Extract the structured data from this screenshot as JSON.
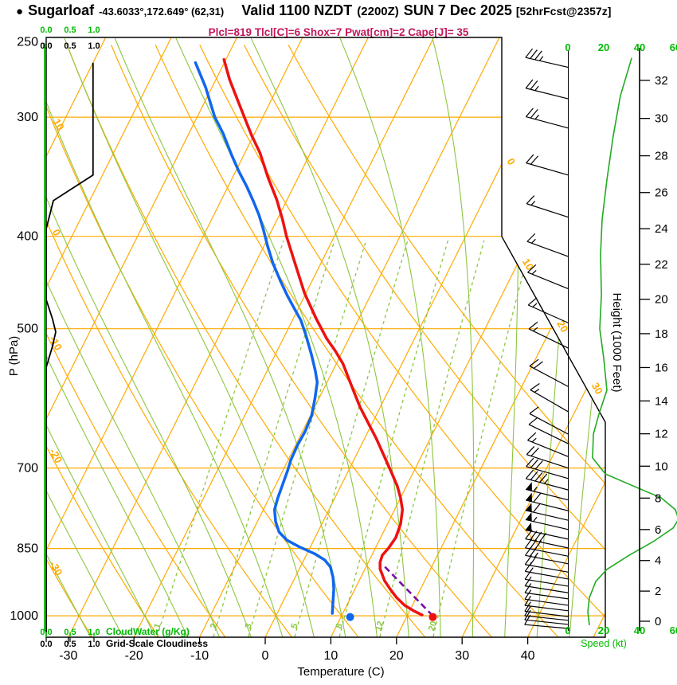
{
  "title": {
    "bullet": "●",
    "station": "Sugarloaf",
    "coords": "-43.6033°,172.649° (62,31)",
    "valid": "Valid 1100 NZDT",
    "zulu": "(2200Z)",
    "date": "SUN 7 Dec 2025",
    "fcst": "[52hrFcst@2357z]"
  },
  "subtitle": "Plcl=819 Tlcl[C]=6 Shox=7 Pwat[cm]=2 Cape[J]= 35",
  "colors": {
    "orange": "#FFAA00",
    "green_bright": "#00BB00",
    "green_soft": "#8CC63F",
    "speed_green": "#22AA22",
    "red": "#EE1111",
    "blue": "#1166EE",
    "purple": "#7A0DA6",
    "crimson": "#C2185B",
    "black": "#000000"
  },
  "axes": {
    "pressure": {
      "label": "P (hPa)",
      "ticks": [
        250,
        300,
        400,
        500,
        700,
        850,
        1000
      ]
    },
    "temperature": {
      "label": "Temperature (C)",
      "ticks": [
        -30,
        -20,
        -10,
        0,
        10,
        20,
        30,
        40
      ]
    },
    "height": {
      "label": "Height (1000 Feet)",
      "ticks": [
        0,
        2,
        4,
        6,
        8,
        10,
        12,
        14,
        16,
        18,
        20,
        22,
        24,
        26,
        28,
        30,
        32
      ]
    },
    "speed": {
      "label": "Speed (kt)",
      "ticks": [
        0,
        20,
        40,
        60
      ]
    },
    "cloudwater": {
      "label": "CloudWater (g/Kg)",
      "scale": [
        "0.0",
        "0.5",
        "1.0"
      ]
    },
    "cloudiness": {
      "label": "Grid-Scale Cloudiness",
      "scale": [
        "0.0",
        "0.5",
        "1.0"
      ]
    }
  },
  "grid": {
    "isobars": [
      300,
      400,
      500,
      700,
      850,
      1000
    ],
    "isotherms": [
      -70,
      -60,
      -50,
      -40,
      -30,
      -20,
      -10,
      0,
      10,
      20,
      30,
      40,
      50
    ],
    "isotherm_labels": [
      0,
      10,
      20,
      30
    ],
    "dry_adiabats": [
      -30,
      -20,
      -10,
      0,
      10,
      20,
      30,
      40,
      50,
      60,
      70
    ],
    "dry_adiabat_labels": [
      10,
      0,
      -10,
      -20,
      -30
    ],
    "moist_adiabats": [
      -30,
      -25,
      -20,
      -15,
      -10,
      -5,
      0,
      5,
      10,
      15,
      20,
      25,
      30,
      35,
      40,
      45
    ],
    "mixing_ratios": [
      1,
      2,
      3,
      5,
      8,
      12,
      20
    ]
  },
  "chart_data": {
    "type": "skew-t-log-p-sounding",
    "pressure_range": [
      248,
      1052
    ],
    "temperature_units": "C",
    "temperature_profile": [
      [
        261,
        -50.3
      ],
      [
        274,
        -47.9
      ],
      [
        286,
        -45.5
      ],
      [
        300,
        -42.8
      ],
      [
        314,
        -40.2
      ],
      [
        327,
        -37.7
      ],
      [
        347,
        -34.6
      ],
      [
        366,
        -31.6
      ],
      [
        384,
        -29.2
      ],
      [
        400,
        -27.3
      ],
      [
        429,
        -23.7
      ],
      [
        459,
        -20.2
      ],
      [
        488,
        -16.5
      ],
      [
        512,
        -13.4
      ],
      [
        527,
        -11.2
      ],
      [
        544,
        -9.0
      ],
      [
        579,
        -5.5
      ],
      [
        604,
        -3.1
      ],
      [
        627,
        -0.7
      ],
      [
        652,
        1.8
      ],
      [
        682,
        4.5
      ],
      [
        710,
        6.9
      ],
      [
        731,
        8.6
      ],
      [
        752,
        10.0
      ],
      [
        774,
        11.2
      ],
      [
        801,
        12.0
      ],
      [
        828,
        12.3
      ],
      [
        849,
        12.0
      ],
      [
        864,
        11.6
      ],
      [
        879,
        11.8
      ],
      [
        893,
        12.3
      ],
      [
        919,
        13.9
      ],
      [
        938,
        15.4
      ],
      [
        957,
        17.0
      ],
      [
        975,
        18.8
      ],
      [
        988,
        20.6
      ],
      [
        998,
        22.2
      ]
    ],
    "dewpoint_profile": [
      [
        263,
        -54.4
      ],
      [
        279,
        -51.0
      ],
      [
        300,
        -47.3
      ],
      [
        312,
        -44.8
      ],
      [
        329,
        -41.8
      ],
      [
        342,
        -39.5
      ],
      [
        355,
        -37.1
      ],
      [
        367,
        -35.1
      ],
      [
        380,
        -33.1
      ],
      [
        393,
        -31.4
      ],
      [
        409,
        -29.5
      ],
      [
        427,
        -27.3
      ],
      [
        445,
        -24.9
      ],
      [
        462,
        -22.6
      ],
      [
        477,
        -20.5
      ],
      [
        490,
        -18.7
      ],
      [
        507,
        -16.9
      ],
      [
        532,
        -14.5
      ],
      [
        553,
        -12.7
      ],
      [
        569,
        -11.5
      ],
      [
        592,
        -10.6
      ],
      [
        617,
        -9.8
      ],
      [
        641,
        -9.6
      ],
      [
        661,
        -9.7
      ],
      [
        686,
        -9.6
      ],
      [
        703,
        -9.3
      ],
      [
        727,
        -9.0
      ],
      [
        752,
        -8.7
      ],
      [
        774,
        -8.3
      ],
      [
        797,
        -7.2
      ],
      [
        817,
        -5.9
      ],
      [
        833,
        -4.1
      ],
      [
        846,
        -1.8
      ],
      [
        861,
        1.2
      ],
      [
        874,
        3.2
      ],
      [
        889,
        4.6
      ],
      [
        912,
        5.8
      ],
      [
        938,
        6.8
      ],
      [
        966,
        7.6
      ],
      [
        994,
        8.4
      ]
    ],
    "parcel_path": [
      [
        1000,
        23.9
      ],
      [
        884,
        12.4
      ]
    ],
    "surface_temp_dot": [
      1003,
      24.0
    ],
    "surface_dewpoint_dot": [
      1003,
      11.4
    ],
    "cloudiness_profile": [
      [
        263,
        0.98
      ],
      [
        345,
        0.98
      ],
      [
        367,
        0.15
      ],
      [
        393,
        0
      ],
      [
        466,
        0
      ],
      [
        488,
        0.13
      ],
      [
        504,
        0.2
      ],
      [
        522,
        0.13
      ],
      [
        549,
        0
      ],
      [
        1040,
        0
      ]
    ],
    "cloudwater_profile": [
      [
        251,
        0
      ],
      [
        1037,
        0
      ]
    ],
    "wind_speed_profile": [
      [
        260,
        35.6
      ],
      [
        285,
        29.3
      ],
      [
        314,
        25.3
      ],
      [
        349,
        21.8
      ],
      [
        384,
        19.1
      ],
      [
        418,
        18.2
      ],
      [
        461,
        18.7
      ],
      [
        500,
        17.8
      ],
      [
        537,
        20.0
      ],
      [
        580,
        21.8
      ],
      [
        615,
        17.3
      ],
      [
        645,
        14.2
      ],
      [
        683,
        13.8
      ],
      [
        710,
        20.9
      ],
      [
        734,
        38.7
      ],
      [
        752,
        52.0
      ],
      [
        774,
        60.0
      ],
      [
        792,
        61.8
      ],
      [
        809,
        58.7
      ],
      [
        836,
        47.6
      ],
      [
        864,
        34.2
      ],
      [
        894,
        21.8
      ],
      [
        920,
        15.6
      ],
      [
        957,
        12.0
      ],
      [
        990,
        11.1
      ],
      [
        1023,
        12.0
      ]
    ],
    "wind_barbs": [
      [
        266,
        35,
        13
      ],
      [
        287,
        29,
        14
      ],
      [
        308,
        26,
        15
      ],
      [
        345,
        22,
        16
      ],
      [
        382,
        19,
        18
      ],
      [
        420,
        18,
        20
      ],
      [
        454,
        19,
        22
      ],
      [
        493,
        18,
        24
      ],
      [
        524,
        19,
        26
      ],
      [
        575,
        22,
        28
      ],
      [
        611,
        17,
        30
      ],
      [
        645,
        14,
        28
      ],
      [
        660,
        14,
        26
      ],
      [
        681,
        15,
        22
      ],
      [
        700,
        20,
        18
      ],
      [
        718,
        32,
        16
      ],
      [
        738,
        48,
        15
      ],
      [
        756,
        57,
        14
      ],
      [
        776,
        61,
        14
      ],
      [
        794,
        61,
        13
      ],
      [
        812,
        58,
        13
      ],
      [
        831,
        50,
        12
      ],
      [
        849,
        41,
        12
      ],
      [
        866,
        33,
        11
      ],
      [
        882,
        27,
        11
      ],
      [
        900,
        22,
        10
      ],
      [
        915,
        17,
        10
      ],
      [
        931,
        14,
        9
      ],
      [
        946,
        13,
        9
      ],
      [
        960,
        12,
        8
      ],
      [
        975,
        12,
        8
      ],
      [
        988,
        11,
        7
      ],
      [
        1002,
        11,
        7
      ],
      [
        1011,
        11,
        6
      ],
      [
        1021,
        12,
        6
      ],
      [
        1031,
        12,
        5
      ]
    ]
  }
}
